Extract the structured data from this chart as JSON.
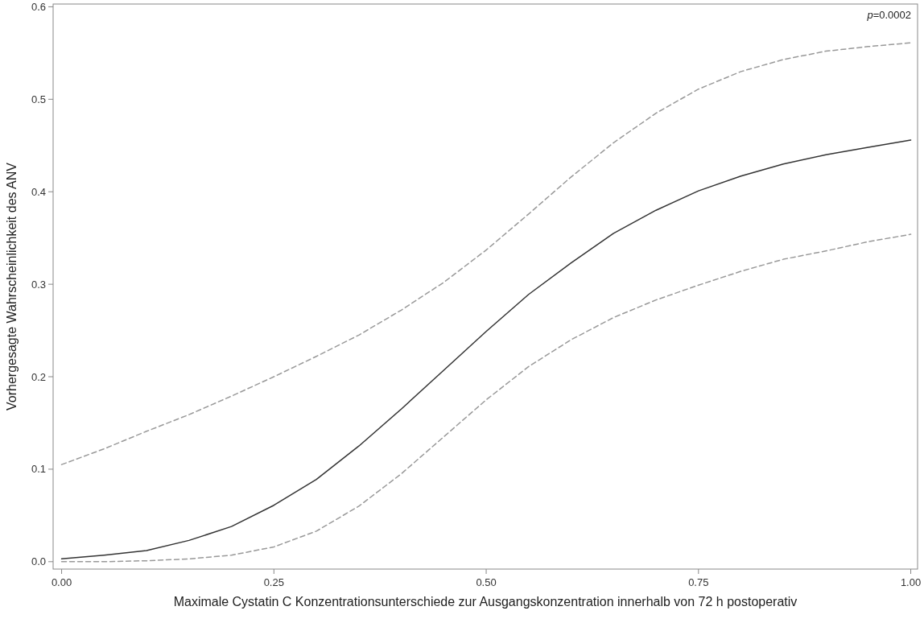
{
  "chart_data": {
    "type": "line",
    "xlabel": "Maximale Cystatin C Konzentrationsunterschiede zur Ausgangskonzentration innerhalb von 72 h postoperativ",
    "ylabel": "Vorhergesagte Wahrscheinlichkeit des ANV",
    "annotations": [
      "p=0.0002"
    ],
    "x": [
      0,
      0.05,
      0.1,
      0.15,
      0.2,
      0.25,
      0.3,
      0.35,
      0.4,
      0.45,
      0.5,
      0.55,
      0.6,
      0.65,
      0.7,
      0.75,
      0.8,
      0.85,
      0.9,
      0.95,
      1.0
    ],
    "series": [
      {
        "color": "#333333",
        "line_style": "solid",
        "values": [
          0.003,
          0.007,
          0.012,
          0.023,
          0.038,
          0.061,
          0.089,
          0.125,
          0.165,
          0.207,
          0.249,
          0.289,
          0.323,
          0.355,
          0.38,
          0.401,
          0.417,
          0.43,
          0.44,
          0.448,
          0.456
        ]
      },
      {
        "color": "#999999",
        "line_style": "dashed",
        "values": [
          0.105,
          0.122,
          0.141,
          0.159,
          0.179,
          0.2,
          0.222,
          0.245,
          0.272,
          0.302,
          0.337,
          0.376,
          0.416,
          0.453,
          0.485,
          0.511,
          0.53,
          0.543,
          0.552,
          0.557,
          0.561
        ]
      },
      {
        "color": "#999999",
        "line_style": "dashed",
        "values": [
          0.0,
          0.0,
          0.001,
          0.003,
          0.007,
          0.016,
          0.033,
          0.06,
          0.095,
          0.135,
          0.175,
          0.211,
          0.24,
          0.264,
          0.283,
          0.299,
          0.314,
          0.327,
          0.336,
          0.346,
          0.354
        ]
      }
    ],
    "xlim": [
      -0.01,
      1.008
    ],
    "ylim": [
      -0.008,
      0.603
    ],
    "xticks": [
      {
        "value": 0,
        "label": "0.00"
      },
      {
        "value": 0.25,
        "label": "0.25"
      },
      {
        "value": 0.5,
        "label": "0.50"
      },
      {
        "value": 0.75,
        "label": "0.75"
      },
      {
        "value": 1,
        "label": "1.00"
      }
    ],
    "yticks": [
      {
        "value": 0,
        "label": "0.0"
      },
      0.1,
      0.2,
      0.3,
      0.4,
      0.5,
      0.6
    ],
    "marker": "none"
  }
}
